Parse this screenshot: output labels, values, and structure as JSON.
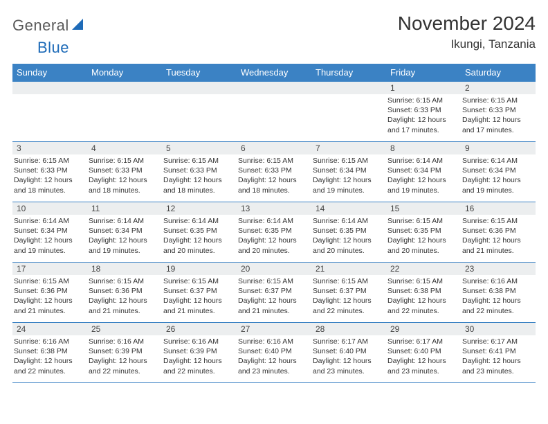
{
  "logo": {
    "text1": "General",
    "text2": "Blue",
    "text_color": "#6a6a6a",
    "accent_color": "#1e6bb8"
  },
  "title": "November 2024",
  "location": "Ikungi, Tanzania",
  "header_bg": "#3b82c4",
  "border_color": "#3b82c4",
  "daynum_bg": "#eceeef",
  "weekdays": [
    "Sunday",
    "Monday",
    "Tuesday",
    "Wednesday",
    "Thursday",
    "Friday",
    "Saturday"
  ],
  "weeks": [
    [
      {
        "n": "",
        "sr": "",
        "ss": "",
        "dl": ""
      },
      {
        "n": "",
        "sr": "",
        "ss": "",
        "dl": ""
      },
      {
        "n": "",
        "sr": "",
        "ss": "",
        "dl": ""
      },
      {
        "n": "",
        "sr": "",
        "ss": "",
        "dl": ""
      },
      {
        "n": "",
        "sr": "",
        "ss": "",
        "dl": ""
      },
      {
        "n": "1",
        "sr": "Sunrise: 6:15 AM",
        "ss": "Sunset: 6:33 PM",
        "dl": "Daylight: 12 hours and 17 minutes."
      },
      {
        "n": "2",
        "sr": "Sunrise: 6:15 AM",
        "ss": "Sunset: 6:33 PM",
        "dl": "Daylight: 12 hours and 17 minutes."
      }
    ],
    [
      {
        "n": "3",
        "sr": "Sunrise: 6:15 AM",
        "ss": "Sunset: 6:33 PM",
        "dl": "Daylight: 12 hours and 18 minutes."
      },
      {
        "n": "4",
        "sr": "Sunrise: 6:15 AM",
        "ss": "Sunset: 6:33 PM",
        "dl": "Daylight: 12 hours and 18 minutes."
      },
      {
        "n": "5",
        "sr": "Sunrise: 6:15 AM",
        "ss": "Sunset: 6:33 PM",
        "dl": "Daylight: 12 hours and 18 minutes."
      },
      {
        "n": "6",
        "sr": "Sunrise: 6:15 AM",
        "ss": "Sunset: 6:33 PM",
        "dl": "Daylight: 12 hours and 18 minutes."
      },
      {
        "n": "7",
        "sr": "Sunrise: 6:15 AM",
        "ss": "Sunset: 6:34 PM",
        "dl": "Daylight: 12 hours and 19 minutes."
      },
      {
        "n": "8",
        "sr": "Sunrise: 6:14 AM",
        "ss": "Sunset: 6:34 PM",
        "dl": "Daylight: 12 hours and 19 minutes."
      },
      {
        "n": "9",
        "sr": "Sunrise: 6:14 AM",
        "ss": "Sunset: 6:34 PM",
        "dl": "Daylight: 12 hours and 19 minutes."
      }
    ],
    [
      {
        "n": "10",
        "sr": "Sunrise: 6:14 AM",
        "ss": "Sunset: 6:34 PM",
        "dl": "Daylight: 12 hours and 19 minutes."
      },
      {
        "n": "11",
        "sr": "Sunrise: 6:14 AM",
        "ss": "Sunset: 6:34 PM",
        "dl": "Daylight: 12 hours and 19 minutes."
      },
      {
        "n": "12",
        "sr": "Sunrise: 6:14 AM",
        "ss": "Sunset: 6:35 PM",
        "dl": "Daylight: 12 hours and 20 minutes."
      },
      {
        "n": "13",
        "sr": "Sunrise: 6:14 AM",
        "ss": "Sunset: 6:35 PM",
        "dl": "Daylight: 12 hours and 20 minutes."
      },
      {
        "n": "14",
        "sr": "Sunrise: 6:14 AM",
        "ss": "Sunset: 6:35 PM",
        "dl": "Daylight: 12 hours and 20 minutes."
      },
      {
        "n": "15",
        "sr": "Sunrise: 6:15 AM",
        "ss": "Sunset: 6:35 PM",
        "dl": "Daylight: 12 hours and 20 minutes."
      },
      {
        "n": "16",
        "sr": "Sunrise: 6:15 AM",
        "ss": "Sunset: 6:36 PM",
        "dl": "Daylight: 12 hours and 21 minutes."
      }
    ],
    [
      {
        "n": "17",
        "sr": "Sunrise: 6:15 AM",
        "ss": "Sunset: 6:36 PM",
        "dl": "Daylight: 12 hours and 21 minutes."
      },
      {
        "n": "18",
        "sr": "Sunrise: 6:15 AM",
        "ss": "Sunset: 6:36 PM",
        "dl": "Daylight: 12 hours and 21 minutes."
      },
      {
        "n": "19",
        "sr": "Sunrise: 6:15 AM",
        "ss": "Sunset: 6:37 PM",
        "dl": "Daylight: 12 hours and 21 minutes."
      },
      {
        "n": "20",
        "sr": "Sunrise: 6:15 AM",
        "ss": "Sunset: 6:37 PM",
        "dl": "Daylight: 12 hours and 21 minutes."
      },
      {
        "n": "21",
        "sr": "Sunrise: 6:15 AM",
        "ss": "Sunset: 6:37 PM",
        "dl": "Daylight: 12 hours and 22 minutes."
      },
      {
        "n": "22",
        "sr": "Sunrise: 6:15 AM",
        "ss": "Sunset: 6:38 PM",
        "dl": "Daylight: 12 hours and 22 minutes."
      },
      {
        "n": "23",
        "sr": "Sunrise: 6:16 AM",
        "ss": "Sunset: 6:38 PM",
        "dl": "Daylight: 12 hours and 22 minutes."
      }
    ],
    [
      {
        "n": "24",
        "sr": "Sunrise: 6:16 AM",
        "ss": "Sunset: 6:38 PM",
        "dl": "Daylight: 12 hours and 22 minutes."
      },
      {
        "n": "25",
        "sr": "Sunrise: 6:16 AM",
        "ss": "Sunset: 6:39 PM",
        "dl": "Daylight: 12 hours and 22 minutes."
      },
      {
        "n": "26",
        "sr": "Sunrise: 6:16 AM",
        "ss": "Sunset: 6:39 PM",
        "dl": "Daylight: 12 hours and 22 minutes."
      },
      {
        "n": "27",
        "sr": "Sunrise: 6:16 AM",
        "ss": "Sunset: 6:40 PM",
        "dl": "Daylight: 12 hours and 23 minutes."
      },
      {
        "n": "28",
        "sr": "Sunrise: 6:17 AM",
        "ss": "Sunset: 6:40 PM",
        "dl": "Daylight: 12 hours and 23 minutes."
      },
      {
        "n": "29",
        "sr": "Sunrise: 6:17 AM",
        "ss": "Sunset: 6:40 PM",
        "dl": "Daylight: 12 hours and 23 minutes."
      },
      {
        "n": "30",
        "sr": "Sunrise: 6:17 AM",
        "ss": "Sunset: 6:41 PM",
        "dl": "Daylight: 12 hours and 23 minutes."
      }
    ]
  ]
}
